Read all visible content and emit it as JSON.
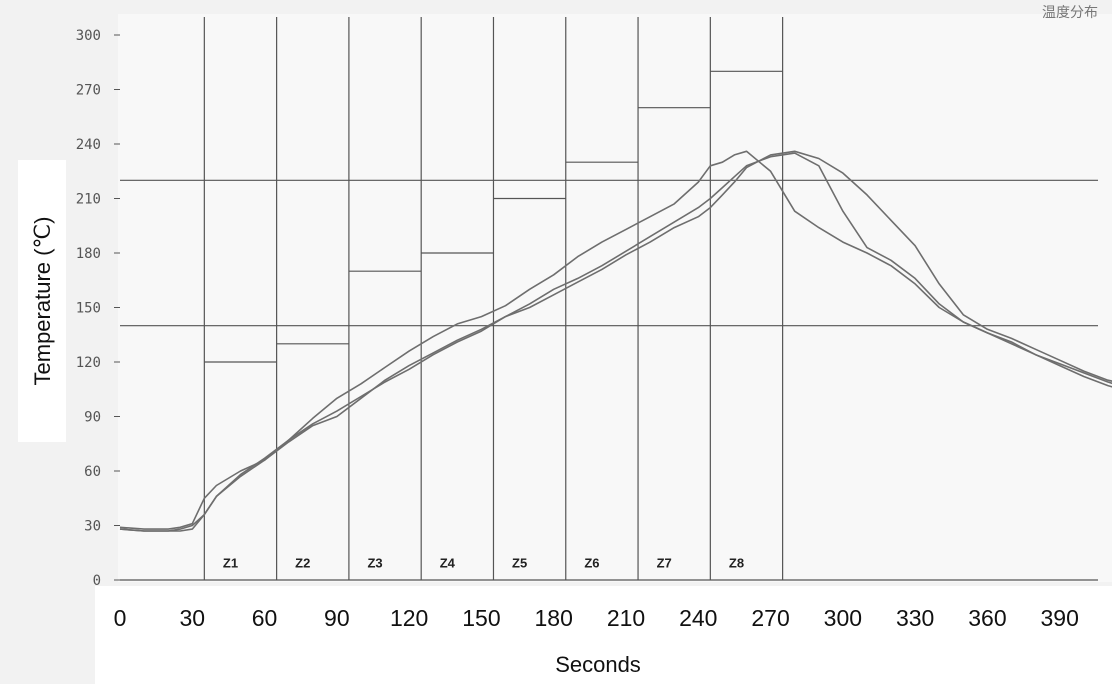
{
  "corner_label": "温度分布",
  "chart_data": {
    "type": "line",
    "title": "",
    "xlabel": "Seconds",
    "ylabel": "Temperature (℃)",
    "xlim": [
      0,
      420
    ],
    "ylim": [
      0,
      300
    ],
    "x_ticks": [
      0,
      30,
      60,
      90,
      120,
      150,
      180,
      210,
      240,
      270,
      300,
      330,
      360,
      390
    ],
    "y_ticks": [
      0,
      30,
      60,
      90,
      120,
      150,
      180,
      210,
      240,
      270,
      300
    ],
    "grid": false,
    "reference_lines_y": [
      140,
      220
    ],
    "zones": [
      {
        "label": "Z1",
        "start": 35,
        "end": 65,
        "setpoint": 120
      },
      {
        "label": "Z2",
        "start": 65,
        "end": 95,
        "setpoint": 130
      },
      {
        "label": "Z3",
        "start": 95,
        "end": 125,
        "setpoint": 170
      },
      {
        "label": "Z4",
        "start": 125,
        "end": 155,
        "setpoint": 180
      },
      {
        "label": "Z5",
        "start": 155,
        "end": 185,
        "setpoint": 210
      },
      {
        "label": "Z6",
        "start": 185,
        "end": 215,
        "setpoint": 230
      },
      {
        "label": "Z7",
        "start": 215,
        "end": 245,
        "setpoint": 260
      },
      {
        "label": "Z8",
        "start": 245,
        "end": 275,
        "setpoint": 280
      }
    ],
    "series": [
      {
        "x": [
          0,
          10,
          20,
          25,
          30,
          35,
          40,
          50,
          60,
          70,
          80,
          90,
          100,
          110,
          120,
          130,
          140,
          150,
          160,
          170,
          180,
          190,
          200,
          210,
          220,
          230,
          240,
          245,
          250,
          255,
          260,
          270,
          280,
          290,
          300,
          310,
          320,
          330,
          340,
          350,
          360,
          370,
          380,
          390,
          400,
          410,
          420
        ],
        "values": [
          29,
          28,
          28,
          29,
          31,
          45,
          52,
          60,
          66,
          76,
          85,
          90,
          100,
          110,
          118,
          125,
          132,
          138,
          145,
          152,
          160,
          166,
          173,
          181,
          189,
          197,
          205,
          210,
          216,
          222,
          228,
          233,
          235,
          228,
          203,
          183,
          176,
          166,
          152,
          142,
          136,
          131,
          124,
          119,
          114,
          109,
          105
        ]
      },
      {
        "x": [
          0,
          10,
          20,
          25,
          30,
          35,
          40,
          50,
          60,
          70,
          80,
          90,
          100,
          110,
          120,
          130,
          140,
          150,
          160,
          170,
          180,
          190,
          200,
          210,
          220,
          230,
          240,
          245,
          250,
          255,
          260,
          270,
          280,
          290,
          300,
          310,
          320,
          330,
          340,
          350,
          360,
          370,
          380,
          390,
          400,
          410,
          420
        ],
        "values": [
          28,
          27,
          27,
          27,
          28,
          36,
          46,
          58,
          67,
          77,
          86,
          93,
          101,
          109,
          116,
          124,
          131,
          137,
          145,
          150,
          157,
          164,
          171,
          179,
          186,
          194,
          200,
          205,
          212,
          219,
          227,
          234,
          236,
          232,
          224,
          212,
          198,
          184,
          163,
          146,
          138,
          133,
          127,
          121,
          115,
          110,
          107
        ]
      },
      {
        "x": [
          0,
          10,
          20,
          25,
          30,
          35,
          40,
          50,
          60,
          70,
          80,
          90,
          100,
          110,
          120,
          130,
          140,
          150,
          160,
          170,
          180,
          190,
          200,
          210,
          220,
          230,
          240,
          245,
          250,
          255,
          260,
          270,
          280,
          290,
          300,
          310,
          320,
          330,
          340,
          350,
          360,
          370,
          380,
          390,
          400,
          410,
          420
        ],
        "values": [
          28,
          27,
          27,
          28,
          30,
          36,
          46,
          57,
          66,
          77,
          89,
          100,
          108,
          117,
          126,
          134,
          141,
          145,
          151,
          160,
          168,
          178,
          186,
          193,
          200,
          207,
          219,
          228,
          230,
          234,
          236,
          225,
          203,
          194,
          186,
          180,
          173,
          163,
          150,
          142,
          136,
          130,
          124,
          118,
          112,
          107,
          103
        ]
      }
    ]
  }
}
